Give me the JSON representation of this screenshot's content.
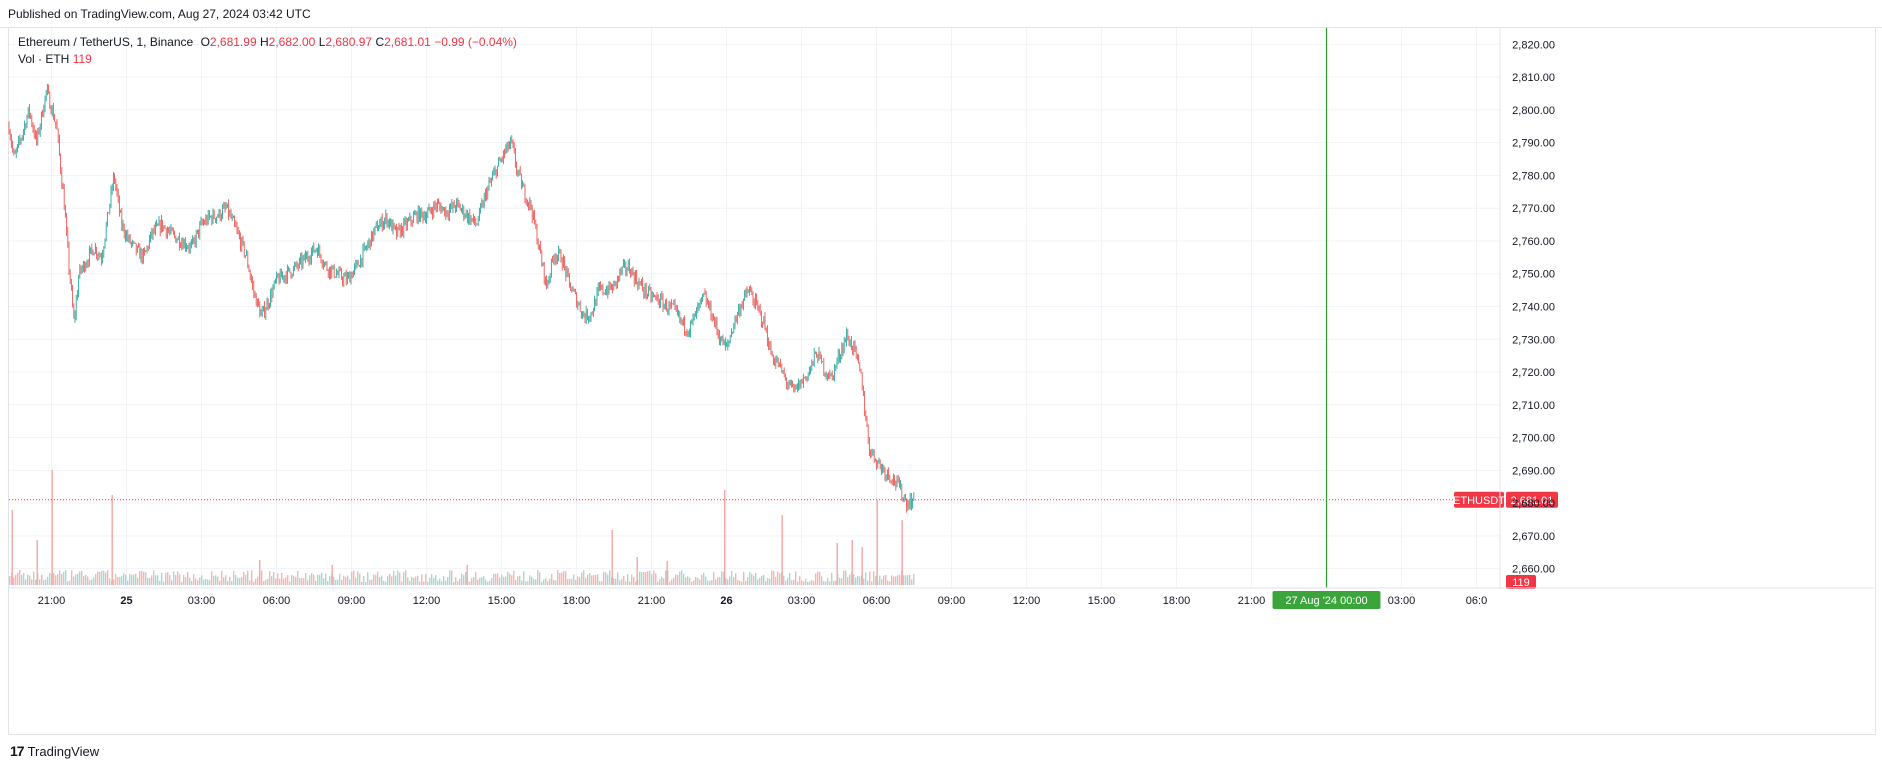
{
  "header": {
    "published": "Published on TradingView.com, Aug 27, 2024 03:42 UTC"
  },
  "legend": {
    "symbol": "Ethereum / TetherUS, 1, Binance",
    "o_label": "O",
    "o_value": "2,681.99",
    "h_label": "H",
    "h_value": "2,682.00",
    "l_label": "L",
    "l_value": "2,680.97",
    "c_label": "C",
    "c_value": "2,681.01",
    "change": "−0.99 (−0.04%)",
    "vol_label": "Vol · ETH",
    "vol_value": "119"
  },
  "footer": {
    "logo_mark": "17",
    "brand": "TradingView"
  },
  "colors": {
    "up": "#26a69a",
    "down": "#ef5350",
    "crosshair": "#2e9e2e",
    "price_tag": "#f23645",
    "grid": "#f0f3fa"
  },
  "chart_data": {
    "type": "candlestick",
    "symbol": "ETHUSDT",
    "last_price": 2681.01,
    "last_price_label": "2,681.01",
    "symbol_tag": "ETHUSDT",
    "volume_tag": "119",
    "y_axis": {
      "min": 2655,
      "max": 2825,
      "ticks": [
        2660,
        2670,
        2680,
        2690,
        2700,
        2710,
        2720,
        2730,
        2740,
        2750,
        2760,
        2770,
        2780,
        2790,
        2800,
        2810,
        2820
      ],
      "tick_labels": [
        "2,660.00",
        "2,670.00",
        "2,680.00",
        "2,690.00",
        "2,700.00",
        "2,710.00",
        "2,720.00",
        "2,730.00",
        "2,740.00",
        "2,750.00",
        "2,760.00",
        "2,770.00",
        "2,780.00",
        "2,790.00",
        "2,800.00",
        "2,810.00",
        "2,820.00"
      ]
    },
    "x_axis": {
      "start_hour": 19.3,
      "end_hour": 55.5,
      "ticks": [
        {
          "hour": 21,
          "label": "21:00",
          "bold": false
        },
        {
          "hour": 24,
          "label": "25",
          "bold": true
        },
        {
          "hour": 27,
          "label": "03:00",
          "bold": false
        },
        {
          "hour": 30,
          "label": "06:00",
          "bold": false
        },
        {
          "hour": 33,
          "label": "09:00",
          "bold": false
        },
        {
          "hour": 36,
          "label": "12:00",
          "bold": false
        },
        {
          "hour": 39,
          "label": "15:00",
          "bold": false
        },
        {
          "hour": 42,
          "label": "18:00",
          "bold": false
        },
        {
          "hour": 45,
          "label": "21:00",
          "bold": false
        },
        {
          "hour": 48,
          "label": "26",
          "bold": true
        },
        {
          "hour": 51,
          "label": "03:00",
          "bold": false
        },
        {
          "hour": 54,
          "label": "06:00",
          "bold": false
        },
        {
          "hour": 57,
          "label": "09:00",
          "bold": false
        },
        {
          "hour": 60,
          "label": "12:00",
          "bold": false
        },
        {
          "hour": 63,
          "label": "15:00",
          "bold": false
        },
        {
          "hour": 66,
          "label": "18:00",
          "bold": false
        },
        {
          "hour": 69,
          "label": "21:00",
          "bold": false
        },
        {
          "hour": 75,
          "label": "03:00",
          "bold": false
        },
        {
          "hour": 78,
          "label": "06:0",
          "bold": false
        }
      ],
      "crosshair_hour": 72,
      "crosshair_label": "27 Aug '24   00:00"
    },
    "price_path": [
      [
        19.3,
        2795
      ],
      [
        19.5,
        2785
      ],
      [
        19.8,
        2792
      ],
      [
        20.1,
        2800
      ],
      [
        20.4,
        2790
      ],
      [
        20.8,
        2806
      ],
      [
        21.2,
        2795
      ],
      [
        21.5,
        2772
      ],
      [
        21.7,
        2752
      ],
      [
        21.9,
        2735
      ],
      [
        22.1,
        2750
      ],
      [
        22.4,
        2754
      ],
      [
        22.7,
        2758
      ],
      [
        23.0,
        2755
      ],
      [
        23.3,
        2770
      ],
      [
        23.5,
        2780
      ],
      [
        23.8,
        2765
      ],
      [
        24.1,
        2760
      ],
      [
        24.4,
        2757
      ],
      [
        24.7,
        2755
      ],
      [
        25.0,
        2762
      ],
      [
        25.4,
        2765
      ],
      [
        25.8,
        2762
      ],
      [
        26.2,
        2760
      ],
      [
        26.6,
        2758
      ],
      [
        27.0,
        2765
      ],
      [
        27.3,
        2767
      ],
      [
        27.7,
        2768
      ],
      [
        28.0,
        2770
      ],
      [
        28.4,
        2763
      ],
      [
        28.8,
        2755
      ],
      [
        29.1,
        2744
      ],
      [
        29.4,
        2737
      ],
      [
        29.7,
        2742
      ],
      [
        30.0,
        2748
      ],
      [
        30.4,
        2750
      ],
      [
        30.8,
        2752
      ],
      [
        31.2,
        2755
      ],
      [
        31.6,
        2758
      ],
      [
        32.0,
        2752
      ],
      [
        32.4,
        2750
      ],
      [
        32.8,
        2748
      ],
      [
        33.2,
        2752
      ],
      [
        33.6,
        2758
      ],
      [
        34.0,
        2764
      ],
      [
        34.4,
        2767
      ],
      [
        34.8,
        2762
      ],
      [
        35.2,
        2765
      ],
      [
        35.6,
        2768
      ],
      [
        36.0,
        2768
      ],
      [
        36.4,
        2771
      ],
      [
        36.8,
        2769
      ],
      [
        37.2,
        2771
      ],
      [
        37.6,
        2768
      ],
      [
        38.0,
        2765
      ],
      [
        38.4,
        2775
      ],
      [
        38.8,
        2782
      ],
      [
        39.2,
        2788
      ],
      [
        39.4,
        2790
      ],
      [
        39.6,
        2782
      ],
      [
        39.9,
        2775
      ],
      [
        40.2,
        2770
      ],
      [
        40.5,
        2758
      ],
      [
        40.8,
        2746
      ],
      [
        41.1,
        2756
      ],
      [
        41.4,
        2755
      ],
      [
        41.7,
        2747
      ],
      [
        42.0,
        2742
      ],
      [
        42.3,
        2737
      ],
      [
        42.6,
        2738
      ],
      [
        42.9,
        2745
      ],
      [
        43.2,
        2745
      ],
      [
        43.5,
        2746
      ],
      [
        43.8,
        2751
      ],
      [
        44.1,
        2752
      ],
      [
        44.4,
        2748
      ],
      [
        44.7,
        2745
      ],
      [
        45.0,
        2743
      ],
      [
        45.3,
        2742
      ],
      [
        45.6,
        2740
      ],
      [
        45.9,
        2739
      ],
      [
        46.2,
        2735
      ],
      [
        46.5,
        2733
      ],
      [
        46.8,
        2738
      ],
      [
        47.1,
        2743
      ],
      [
        47.4,
        2738
      ],
      [
        47.7,
        2731
      ],
      [
        48.0,
        2727
      ],
      [
        48.3,
        2735
      ],
      [
        48.6,
        2741
      ],
      [
        48.9,
        2745
      ],
      [
        49.2,
        2740
      ],
      [
        49.5,
        2735
      ],
      [
        49.8,
        2725
      ],
      [
        50.1,
        2722
      ],
      [
        50.4,
        2717
      ],
      [
        50.7,
        2714
      ],
      [
        51.0,
        2717
      ],
      [
        51.3,
        2720
      ],
      [
        51.6,
        2726
      ],
      [
        51.9,
        2721
      ],
      [
        52.2,
        2718
      ],
      [
        52.5,
        2725
      ],
      [
        52.8,
        2731
      ],
      [
        53.1,
        2727
      ],
      [
        53.4,
        2718
      ],
      [
        53.7,
        2697
      ],
      [
        54.0,
        2693
      ],
      [
        54.3,
        2690
      ],
      [
        54.6,
        2688
      ],
      [
        54.9,
        2685
      ],
      [
        55.2,
        2680
      ],
      [
        55.5,
        2681
      ]
    ],
    "volume_spikes": [
      {
        "hour": 19.4,
        "h": 75
      },
      {
        "hour": 20.4,
        "h": 45
      },
      {
        "hour": 21.0,
        "h": 115
      },
      {
        "hour": 23.4,
        "h": 90
      },
      {
        "hour": 29.3,
        "h": 25
      },
      {
        "hour": 32.2,
        "h": 20
      },
      {
        "hour": 37.6,
        "h": 20
      },
      {
        "hour": 43.4,
        "h": 55
      },
      {
        "hour": 44.4,
        "h": 28
      },
      {
        "hour": 45.6,
        "h": 24
      },
      {
        "hour": 47.9,
        "h": 95
      },
      {
        "hour": 50.2,
        "h": 70
      },
      {
        "hour": 52.4,
        "h": 42
      },
      {
        "hour": 53.0,
        "h": 45
      },
      {
        "hour": 53.4,
        "h": 38
      },
      {
        "hour": 54.0,
        "h": 85
      },
      {
        "hour": 55.0,
        "h": 65
      }
    ]
  }
}
